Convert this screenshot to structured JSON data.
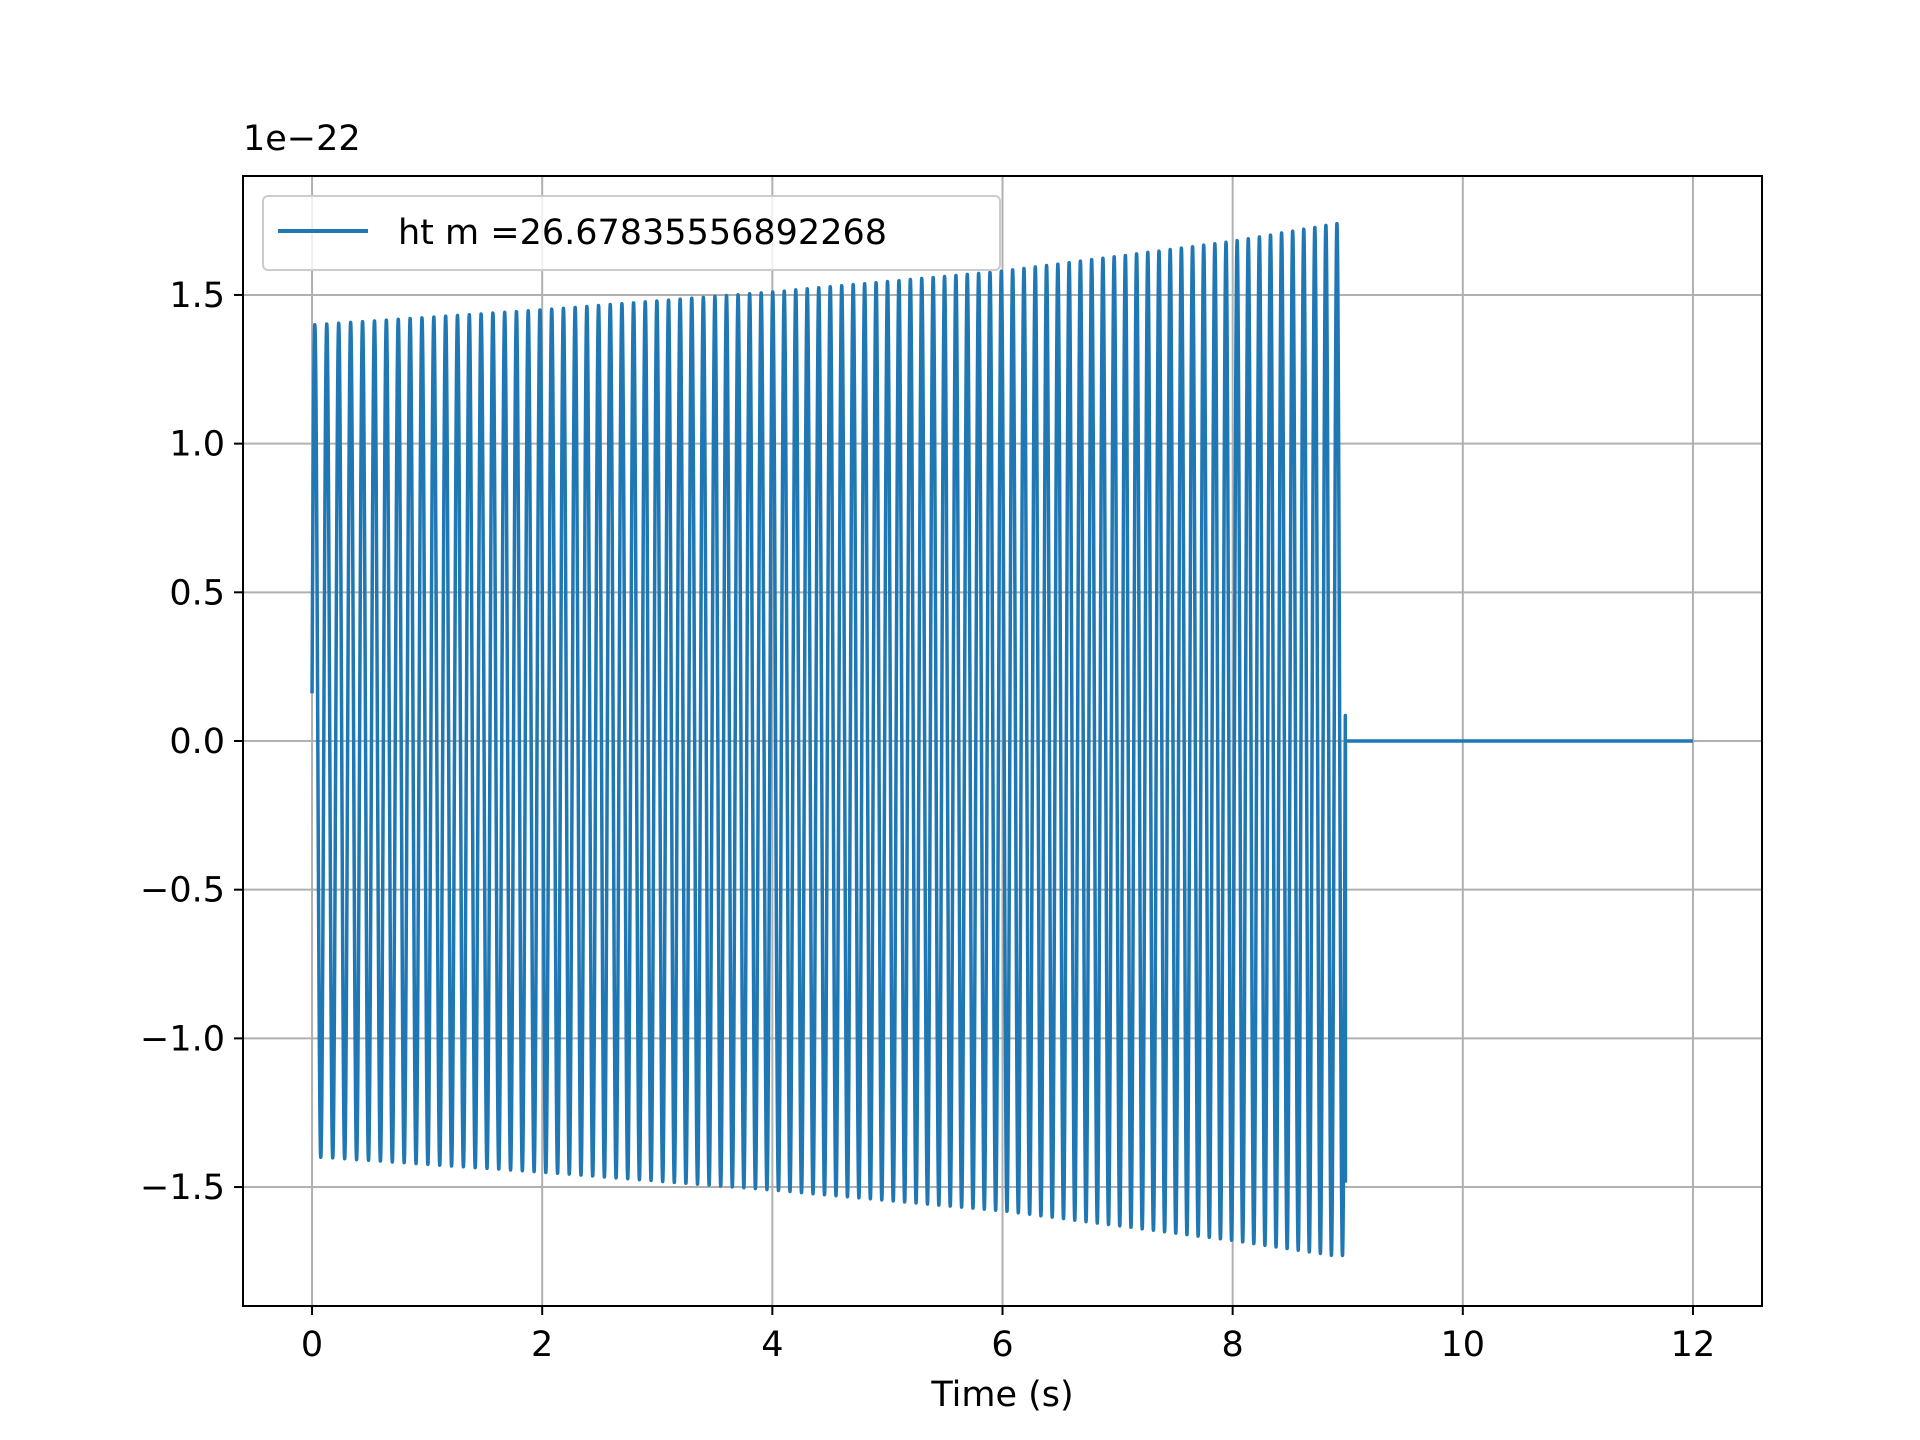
{
  "chart_data": {
    "type": "line",
    "title": "",
    "xlabel": "Time (s)",
    "ylabel": "",
    "offset_text": "1e−22",
    "xlim": [
      -0.6,
      12.6
    ],
    "ylim": [
      -1.9,
      1.9
    ],
    "y_scale_factor": 1e-22,
    "grid": true,
    "legend_position": "upper-left",
    "x_ticks": [
      0,
      2,
      4,
      6,
      8,
      10,
      12
    ],
    "x_tick_labels": [
      "0",
      "2",
      "4",
      "6",
      "8",
      "10",
      "12"
    ],
    "y_ticks": [
      -1.5,
      -1.0,
      -0.5,
      0.0,
      0.5,
      1.0,
      1.5
    ],
    "y_tick_labels": [
      "−1.5",
      "−1.0",
      "−0.5",
      "0.0",
      "0.5",
      "1.0",
      "1.5"
    ],
    "series": [
      {
        "name": "ht m =26.67835556892268",
        "color": "#1f77b4",
        "t_start": 0.0,
        "t_merger": 8.98,
        "t_end": 12.0,
        "initial_value": 0.16,
        "final_value": -1.48,
        "cycles": 90,
        "peaks": [
          {
            "x": 0.03,
            "y": 1.4
          },
          {
            "x": 2.0,
            "y": 1.45
          },
          {
            "x": 4.0,
            "y": 1.51
          },
          {
            "x": 6.0,
            "y": 1.58
          },
          {
            "x": 8.0,
            "y": 1.68
          },
          {
            "x": 8.9,
            "y": 1.74
          }
        ],
        "troughs": [
          {
            "x": 0.1,
            "y": -1.4
          },
          {
            "x": 2.0,
            "y": -1.45
          },
          {
            "x": 4.0,
            "y": -1.51
          },
          {
            "x": 6.0,
            "y": -1.58
          },
          {
            "x": 8.0,
            "y": -1.68
          },
          {
            "x": 8.87,
            "y": -1.73
          }
        ],
        "post_merger_value": 0.0
      }
    ]
  }
}
